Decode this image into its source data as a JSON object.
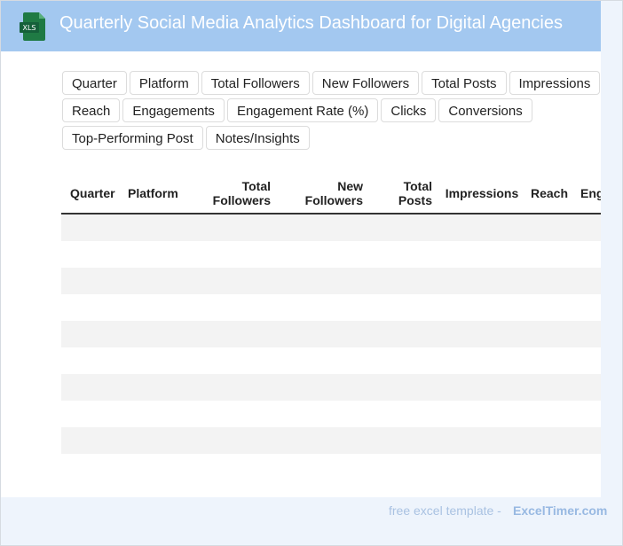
{
  "header": {
    "title": "Quarterly Social Media Analytics Dashboard for Digital Agencies",
    "icon_label": "XLS"
  },
  "tags": [
    "Quarter",
    "Platform",
    "Total Followers",
    "New Followers",
    "Total Posts",
    "Impressions",
    "Reach",
    "Engagements",
    "Engagement Rate (%)",
    "Clicks",
    "Conversions",
    "Top-Performing Post",
    "Notes/Insights"
  ],
  "table": {
    "columns": [
      [
        "Quarter"
      ],
      [
        "Platform"
      ],
      [
        "Total",
        "Followers"
      ],
      [
        "New",
        "Followers"
      ],
      [
        "Total",
        "Posts"
      ],
      [
        "Impressions"
      ],
      [
        "Reach"
      ],
      [
        "Eng"
      ]
    ]
  },
  "footer": {
    "text": "free excel template -",
    "site": "ExcelTimer.com"
  }
}
